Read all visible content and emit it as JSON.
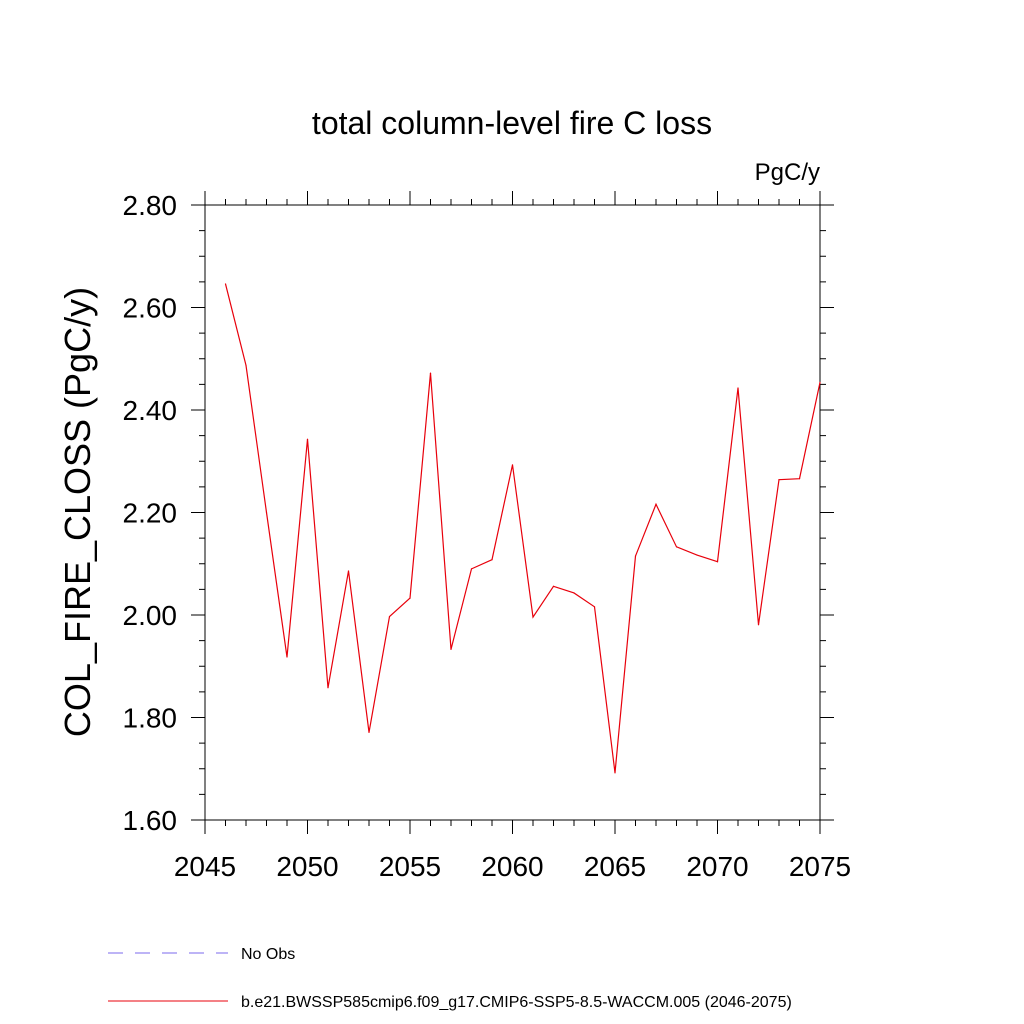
{
  "chart_data": {
    "type": "line",
    "title": "total column-level fire C loss",
    "units": "PgC/y",
    "ylabel": "COL_FIRE_CLOSS  (PgC/y)",
    "xlabel": "",
    "xlim": [
      2045,
      2075
    ],
    "ylim": [
      1.6,
      2.8
    ],
    "x_ticks": [
      2045,
      2050,
      2055,
      2060,
      2065,
      2070,
      2075
    ],
    "x_tick_labels": [
      "2045",
      "2050",
      "2055",
      "2060",
      "2065",
      "2070",
      "2075"
    ],
    "y_ticks": [
      1.6,
      1.8,
      2.0,
      2.2,
      2.4,
      2.6,
      2.8
    ],
    "y_tick_labels": [
      "1.60",
      "1.80",
      "2.00",
      "2.20",
      "2.40",
      "2.60",
      "2.80"
    ],
    "grid": false,
    "legend_position": "bottom",
    "series": [
      {
        "name": "b.e21.BWSSP585cmip6.f09_g17.CMIP6-SSP5-8.5-WACCM.005 (2046-2075)",
        "color": "#e8000b",
        "dash": "solid",
        "x": [
          2046,
          2047,
          2048,
          2049,
          2050,
          2051,
          2052,
          2053,
          2054,
          2055,
          2056,
          2057,
          2058,
          2059,
          2060,
          2061,
          2062,
          2063,
          2064,
          2065,
          2066,
          2067,
          2068,
          2069,
          2070,
          2071,
          2072,
          2073,
          2074,
          2075
        ],
        "y": [
          2.646,
          2.487,
          2.2,
          1.918,
          2.343,
          1.858,
          2.086,
          1.771,
          1.997,
          2.033,
          2.472,
          1.933,
          2.09,
          2.108,
          2.293,
          1.996,
          2.056,
          2.043,
          2.016,
          1.692,
          2.115,
          2.216,
          2.133,
          2.117,
          2.104,
          2.443,
          1.981,
          2.264,
          2.266,
          2.454
        ]
      }
    ],
    "legend": [
      {
        "label": "No Obs",
        "color": "#7b68ee",
        "dash": "dashed"
      },
      {
        "label": "b.e21.BWSSP585cmip6.f09_g17.CMIP6-SSP5-8.5-WACCM.005 (2046-2075)",
        "color": "#e8000b",
        "dash": "solid"
      }
    ]
  }
}
